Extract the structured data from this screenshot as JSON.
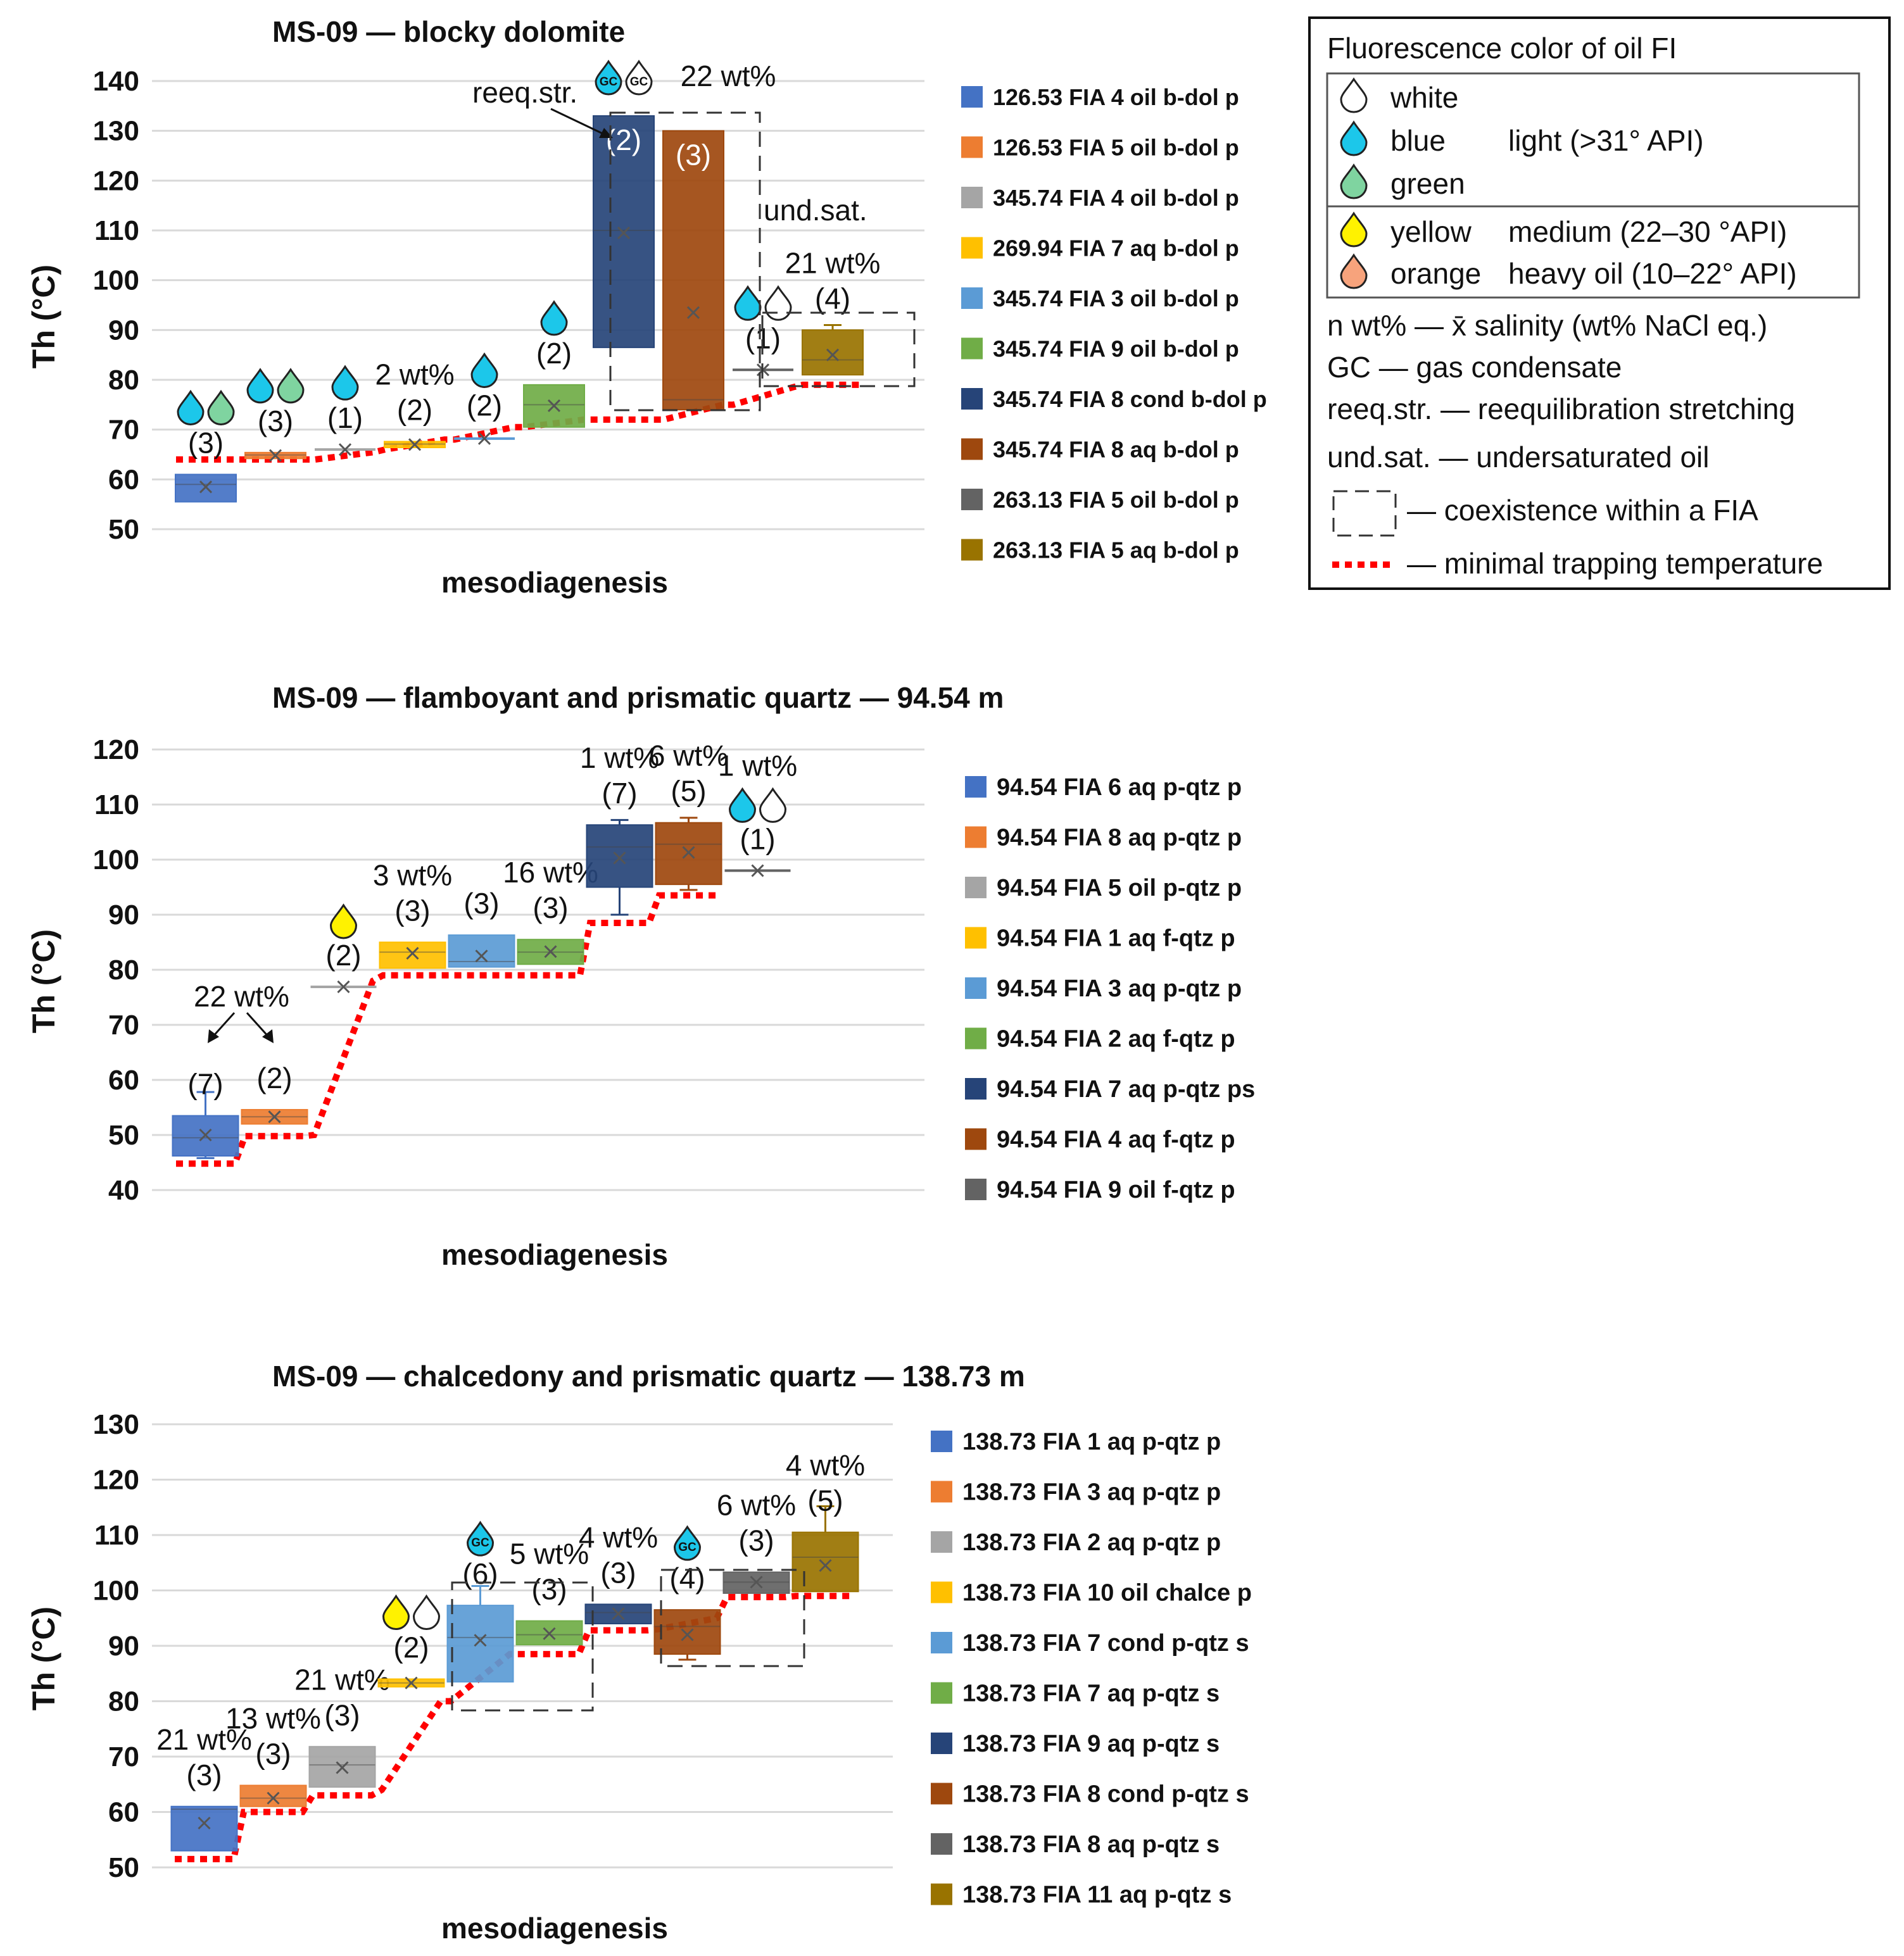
{
  "chart_data": [
    {
      "type": "box",
      "title": "MS-09 — blocky dolomite",
      "xlabel": "mesodiagenesis",
      "ylabel": "Th (°C)",
      "ylim": [
        50,
        140
      ],
      "yticks": [
        50,
        60,
        70,
        80,
        90,
        100,
        110,
        120,
        130,
        140
      ],
      "grid": true,
      "legend_position": "right",
      "series": [
        {
          "name": "126.53 FIA 4 oil b-dol p",
          "color": "#4472c4",
          "q1": 55.5,
          "median": 59,
          "q3": 61,
          "mean": 58.5,
          "count_label": "(3)",
          "droplets": [
            "blue",
            "green"
          ]
        },
        {
          "name": "126.53 FIA 5 oil b-dol p",
          "color": "#ed7d31",
          "q1": 64.2,
          "median": 64.9,
          "q3": 65.4,
          "mean": 64.8,
          "count_label": "(3)",
          "droplets": [
            "blue",
            "green"
          ]
        },
        {
          "name": "345.74 FIA 4 oil b-dol p",
          "color": "#a5a5a5",
          "q1": 66,
          "median": 66,
          "q3": 66,
          "mean": 66,
          "count_label": "(1)",
          "droplets": [
            "blue"
          ]
        },
        {
          "name": "269.94 FIA 7 aq b-dol p",
          "color": "#ffc000",
          "q1": 66.4,
          "median": 67.1,
          "q3": 67.6,
          "mean": 67,
          "count_label": "(2)",
          "salinity_label": "2 wt%"
        },
        {
          "name": "345.74 FIA 3 oil b-dol p",
          "color": "#5b9bd5",
          "q1": 67.9,
          "median": 68.2,
          "q3": 68.5,
          "mean": 68.2,
          "count_label": "(2)",
          "droplets": [
            "blue"
          ]
        },
        {
          "name": "345.74 FIA 9 oil b-dol p",
          "color": "#70ad47",
          "q1": 70.5,
          "median": 75,
          "q3": 79,
          "mean": 74.8,
          "count_label": "(2)",
          "droplets": [
            "blue"
          ]
        },
        {
          "name": "345.74 FIA 8 cond b-dol p",
          "color": "#264478",
          "q1": 86.5,
          "median": 110,
          "q3": 133,
          "mean": 109.5,
          "count_label": "(2)",
          "droplets": [
            "blue-GC",
            "white-GC"
          ],
          "label_inside": true
        },
        {
          "name": "345.74 FIA 8 aq b-dol p",
          "color": "#9e480e",
          "q1": 74,
          "median": 76,
          "q3": 130,
          "mean": 93.5,
          "count_label": "(3)",
          "salinity_label": "22 wt%",
          "label_inside": true
        },
        {
          "name": "263.13 FIA 5 oil b-dol p",
          "color": "#636363",
          "q1": 82,
          "median": 82,
          "q3": 82,
          "mean": 82,
          "count_label": "(1)",
          "droplets": [
            "blue",
            "white"
          ]
        },
        {
          "name": "263.13 FIA 5 aq b-dol p",
          "color": "#997300",
          "q1": 81,
          "median": 84,
          "q3": 90,
          "mean": 85,
          "whisker_high": 91,
          "count_label": "(4)",
          "salinity_label": "21 wt%"
        }
      ],
      "annotations": {
        "reeq": "reeq.str.",
        "undsat": "und.sat."
      },
      "min_trapping_temperature": [
        [
          64,
          64
        ],
        [
          64,
          64
        ],
        [
          64,
          65.5
        ],
        [
          66,
          68
        ],
        [
          68,
          70.5
        ],
        [
          70.5,
          72
        ],
        [
          72,
          72
        ],
        [
          72,
          75
        ],
        [
          75,
          78.5
        ],
        [
          79,
          79
        ]
      ]
    },
    {
      "type": "box",
      "title": "MS-09 — flamboyant and prismatic quartz — 94.54 m",
      "xlabel": "mesodiagenesis",
      "ylabel": "Th (°C)",
      "ylim": [
        40,
        120
      ],
      "yticks": [
        40,
        50,
        60,
        70,
        80,
        90,
        100,
        110,
        120
      ],
      "grid": true,
      "legend_position": "right",
      "series": [
        {
          "name": "94.54 FIA 6 aq p-qtz p",
          "color": "#4472c4",
          "q1": 46.2,
          "median": 49.5,
          "q3": 53.5,
          "mean": 50,
          "whisker_low": 45.8,
          "whisker_high": 57.8,
          "count_label": "(7)"
        },
        {
          "name": "94.54 FIA 8 aq p-qtz p",
          "color": "#ed7d31",
          "q1": 52,
          "median": 53.3,
          "q3": 54.6,
          "mean": 53.3,
          "count_label": "(2)"
        },
        {
          "name": "94.54 FIA 5 oil p-qtz p",
          "color": "#a5a5a5",
          "q1": 76.9,
          "median": 76.9,
          "q3": 76.9,
          "mean": 76.9,
          "count_label": "(2)",
          "droplets": [
            "yellow"
          ]
        },
        {
          "name": "94.54 FIA 1 aq f-qtz p",
          "color": "#ffc000",
          "q1": 80.3,
          "median": 83.2,
          "q3": 85,
          "mean": 83,
          "count_label": "(3)",
          "salinity_label": "3 wt%"
        },
        {
          "name": "94.54 FIA 3 aq p-qtz p",
          "color": "#5b9bd5",
          "q1": 80.5,
          "median": 81.5,
          "q3": 86.3,
          "mean": 82.5,
          "count_label": "(3)"
        },
        {
          "name": "94.54 FIA 2 aq f-qtz p",
          "color": "#70ad47",
          "q1": 81,
          "median": 83.2,
          "q3": 85.5,
          "mean": 83.3,
          "count_label": "(3)",
          "salinity_label": "16 wt%"
        },
        {
          "name": "94.54 FIA 7 aq p-qtz ps",
          "color": "#264478",
          "q1": 95,
          "median": 102.3,
          "q3": 106.3,
          "mean": 100.3,
          "whisker_low": 90,
          "whisker_high": 107.2,
          "count_label": "(7)",
          "salinity_label": "1 wt%"
        },
        {
          "name": "94.54 FIA 4 aq f-qtz p",
          "color": "#9e480e",
          "q1": 95.5,
          "median": 102.8,
          "q3": 106.7,
          "mean": 101.3,
          "whisker_low": 94.5,
          "whisker_high": 107.6,
          "count_label": "(5)",
          "salinity_label": "6 wt%"
        },
        {
          "name": "94.54 FIA 9 oil f-qtz p",
          "color": "#636363",
          "q1": 98,
          "median": 98,
          "q3": 98,
          "mean": 98,
          "count_label": "(1)",
          "droplets": [
            "blue",
            "white"
          ],
          "salinity_label": "1 wt%"
        }
      ],
      "annotations": {
        "group_salinity": "22 wt%"
      },
      "min_trapping_temperature": [
        [
          44.8,
          44.8
        ],
        [
          49.8,
          49.8
        ],
        [
          50,
          78
        ],
        [
          79,
          79
        ],
        [
          79,
          79
        ],
        [
          79,
          79
        ],
        [
          88.5,
          88.5
        ],
        [
          93.5,
          93.5
        ]
      ]
    },
    {
      "type": "box",
      "title": "MS-09 — chalcedony and prismatic quartz — 138.73 m",
      "xlabel": "mesodiagenesis",
      "ylabel": "Th (°C)",
      "ylim": [
        50,
        130
      ],
      "yticks": [
        50,
        60,
        70,
        80,
        90,
        100,
        110,
        120,
        130
      ],
      "grid": true,
      "legend_position": "right",
      "series": [
        {
          "name": "138.73 FIA 1 aq p-qtz p",
          "color": "#4472c4",
          "q1": 53,
          "median": 60.5,
          "q3": 61,
          "mean": 58,
          "count_label": "(3)",
          "salinity_label": "21 wt%"
        },
        {
          "name": "138.73 FIA 3 aq p-qtz p",
          "color": "#ed7d31",
          "q1": 61,
          "median": 62.5,
          "q3": 64.8,
          "mean": 62.5,
          "count_label": "(3)",
          "salinity_label": "13 wt%"
        },
        {
          "name": "138.73 FIA 2 aq p-qtz p",
          "color": "#a5a5a5",
          "q1": 64.5,
          "median": 68.5,
          "q3": 71.8,
          "mean": 68,
          "count_label": "(3)",
          "salinity_label": "21 wt%"
        },
        {
          "name": "138.73 FIA 10 oil chalce p",
          "color": "#ffc000",
          "q1": 82.6,
          "median": 83.3,
          "q3": 84,
          "mean": 83.3,
          "count_label": "(2)",
          "droplets": [
            "yellow",
            "white"
          ]
        },
        {
          "name": "138.73 FIA 7 cond p-qtz s",
          "color": "#5b9bd5",
          "q1": 83.5,
          "median": 91.5,
          "q3": 97.3,
          "mean": 91,
          "whisker_high": 100.8,
          "count_label": "(6)",
          "droplets": [
            "blue-GC"
          ]
        },
        {
          "name": "138.73 FIA 7 aq p-qtz s",
          "color": "#70ad47",
          "q1": 90.2,
          "median": 92,
          "q3": 94.5,
          "mean": 92.2,
          "count_label": "(3)",
          "salinity_label": "5 wt%"
        },
        {
          "name": "138.73 FIA 9 aq p-qtz s",
          "color": "#264478",
          "q1": 94,
          "median": 96,
          "q3": 97.5,
          "mean": 95.8,
          "count_label": "(3)",
          "salinity_label": "4 wt%"
        },
        {
          "name": "138.73 FIA 8 cond p-qtz s",
          "color": "#9e480e",
          "q1": 88.5,
          "median": 93.5,
          "q3": 96.5,
          "mean": 92,
          "whisker_low": 87.5,
          "count_label": "(4)",
          "droplets": [
            "blue-GC"
          ]
        },
        {
          "name": "138.73 FIA 8 aq p-qtz s",
          "color": "#636363",
          "q1": 99.5,
          "median": 101.5,
          "q3": 103.3,
          "mean": 101.5,
          "count_label": "(3)",
          "salinity_label": "6 wt%"
        },
        {
          "name": "138.73 FIA 11 aq p-qtz s",
          "color": "#997300",
          "q1": 99.8,
          "median": 106,
          "q3": 110.5,
          "mean": 104.5,
          "whisker_high": 115.2,
          "count_label": "(5)",
          "salinity_label": "4 wt%"
        }
      ],
      "min_trapping_temperature": [
        [
          51.5,
          51.5
        ],
        [
          60,
          60
        ],
        [
          63,
          63
        ],
        [
          64,
          80
        ],
        [
          80,
          88.5
        ],
        [
          88.5,
          88.5
        ],
        [
          92.8,
          92.8
        ],
        [
          93,
          95
        ],
        [
          98.8,
          98.8
        ],
        [
          99,
          99
        ]
      ]
    }
  ],
  "key": {
    "title": "Fluorescence color of oil FI",
    "colors": [
      {
        "label": "white",
        "icon": "white-droplet-icon",
        "hex": "#ffffff"
      },
      {
        "label": "blue",
        "icon": "blue-droplet-icon",
        "hex": "#1cc7ea"
      },
      {
        "label": "green",
        "icon": "green-droplet-icon",
        "hex": "#7fd4a0"
      },
      {
        "label": "yellow",
        "icon": "yellow-droplet-icon",
        "hex": "#fff200"
      },
      {
        "label": "orange",
        "icon": "orange-droplet-icon",
        "hex": "#f7a37c"
      }
    ],
    "api_light": "light (>31° API)",
    "api_medium": "medium (22–30 °API)",
    "api_heavy": "heavy oil (10–22° API)",
    "notes": [
      "n wt% — x̄ salinity (wt% NaCl eq.)",
      "GC — gas condensate",
      "reeq.str. — reequilibration stretching",
      "und.sat. — undersaturated oil"
    ],
    "dashed_box_label": "— coexistence within a FIA",
    "red_dotted_label": "— minimal trapping temperature"
  },
  "droplet_gc_label": "GC"
}
